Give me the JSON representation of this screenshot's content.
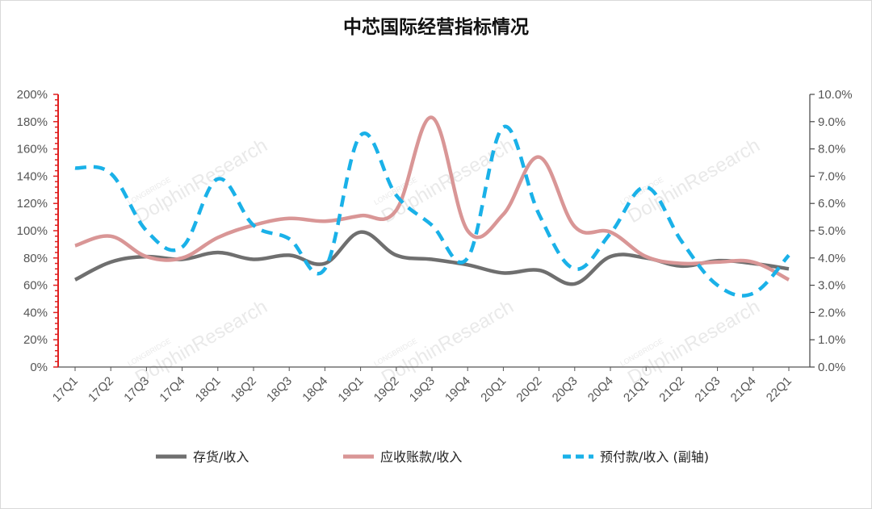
{
  "chart_data": {
    "type": "line",
    "title": "中芯国际经营指标情况",
    "categories": [
      "17Q1",
      "17Q2",
      "17Q3",
      "17Q4",
      "18Q1",
      "18Q2",
      "18Q3",
      "18Q4",
      "19Q1",
      "19Q2",
      "19Q3",
      "19Q4",
      "20Q1",
      "20Q2",
      "20Q3",
      "20Q4",
      "21Q1",
      "21Q2",
      "21Q3",
      "21Q4",
      "22Q1"
    ],
    "y_left": {
      "min": 0,
      "max": 200,
      "step": 20,
      "ticks": [
        "0%",
        "20%",
        "40%",
        "60%",
        "80%",
        "100%",
        "120%",
        "140%",
        "160%",
        "180%",
        "200%"
      ]
    },
    "y_right": {
      "min": 0,
      "max": 10,
      "step": 1,
      "ticks": [
        "0.0%",
        "1.0%",
        "2.0%",
        "3.0%",
        "4.0%",
        "5.0%",
        "6.0%",
        "7.0%",
        "8.0%",
        "9.0%",
        "10.0%"
      ]
    },
    "series": [
      {
        "name": "存货/收入",
        "axis": "left",
        "color": "#6f6f6f",
        "dash": "solid",
        "values": [
          64,
          77,
          81,
          79,
          84,
          79,
          82,
          76,
          99,
          82,
          79,
          75,
          69,
          71,
          61,
          81,
          80,
          74,
          78,
          76,
          72
        ]
      },
      {
        "name": "应收账款/收入",
        "axis": "left",
        "color": "#d99696",
        "dash": "solid",
        "values": [
          89,
          96,
          81,
          80,
          95,
          104,
          109,
          107,
          111,
          115,
          183,
          100,
          112,
          154,
          103,
          99,
          81,
          76,
          77,
          77,
          64
        ]
      },
      {
        "name": "预付款/收入 (副轴)",
        "axis": "right",
        "color": "#1ab1e8",
        "dash": "dashed",
        "values": [
          7.3,
          7.1,
          5.0,
          4.4,
          6.9,
          5.2,
          4.7,
          3.6,
          8.5,
          6.3,
          5.2,
          4.0,
          8.8,
          5.6,
          3.6,
          4.9,
          6.6,
          4.6,
          3.0,
          2.7,
          4.1
        ]
      }
    ],
    "legend_position": "bottom",
    "grid": false
  },
  "watermark": {
    "top": "LONGBRIDGE",
    "main": "DolphinResearch"
  }
}
